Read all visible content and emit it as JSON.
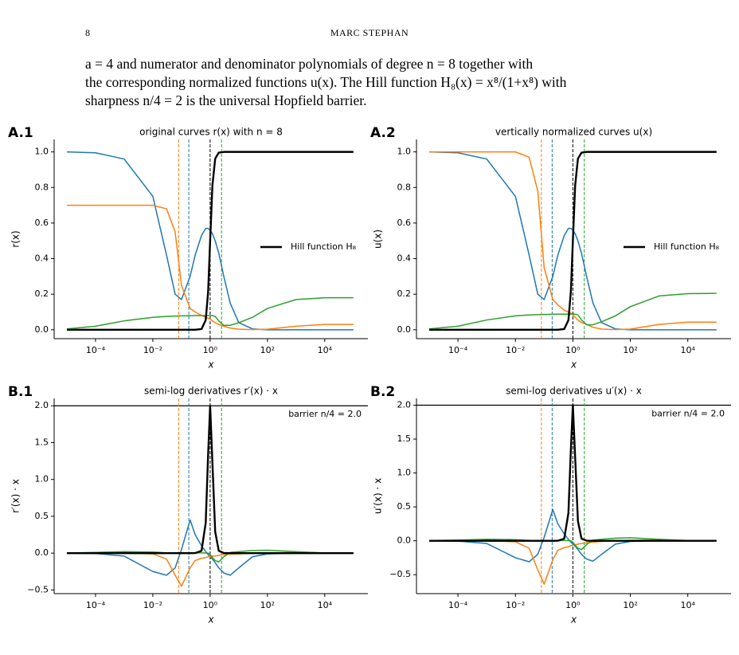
{
  "header": {
    "page_number": "8",
    "running_title": "MARC STEPHAN"
  },
  "paragraph": {
    "lines": [
      "a = 4 and numerator and denominator polynomials of degree n = 8 together with",
      "the corresponding normalized functions u(x). The Hill function H₈(x) = x⁸/(1+x⁸) with",
      "sharpness n/4 = 2 is the universal Hopfield barrier."
    ]
  },
  "chart_data": [
    {
      "type": "line",
      "panel": "A.1",
      "title": "original curves r(x) with n = 8",
      "xlabel": "x",
      "ylabel": "r(x)",
      "xscale": "log",
      "xlim": [
        3.6e-06,
        320000
      ],
      "ylim": [
        -0.05,
        1.07
      ],
      "xticks": [
        {
          "value": 0.0001,
          "label": "10⁻⁴"
        },
        {
          "value": 0.01,
          "label": "10⁻²"
        },
        {
          "value": 1,
          "label": "10⁰"
        },
        {
          "value": 100,
          "label": "10²"
        },
        {
          "value": 10000,
          "label": "10⁴"
        }
      ],
      "yticks": [
        {
          "value": 0,
          "label": "0.0"
        },
        0.2,
        0.4,
        0.6,
        0.8,
        {
          "value": 1,
          "label": "1.0"
        }
      ],
      "legend_loc": "center right",
      "x": [
        1e-05,
        0.0001,
        0.001,
        0.01,
        0.03,
        0.06,
        0.1,
        0.2,
        0.3,
        0.5,
        0.7,
        0.85,
        1,
        1.2,
        1.5,
        2,
        3,
        5,
        10,
        30,
        100,
        1000,
        10000,
        100000
      ],
      "series": [
        {
          "color": "#1f77b4",
          "values": [
            1.0,
            0.995,
            0.96,
            0.75,
            0.42,
            0.2,
            0.17,
            0.3,
            0.42,
            0.53,
            0.57,
            0.57,
            0.56,
            0.54,
            0.5,
            0.43,
            0.3,
            0.15,
            0.04,
            0.005,
            0,
            0,
            0,
            0
          ]
        },
        {
          "color": "#ff7f0e",
          "values": [
            0.7,
            0.7,
            0.7,
            0.7,
            0.68,
            0.55,
            0.25,
            0.12,
            0.1,
            0.08,
            0.07,
            0.065,
            0.06,
            0.05,
            0.04,
            0.03,
            0.02,
            0.01,
            0.003,
            0.001,
            0.003,
            0.02,
            0.03,
            0.03
          ]
        },
        {
          "color": "#2ca02c",
          "values": [
            0.005,
            0.02,
            0.05,
            0.07,
            0.075,
            0.077,
            0.078,
            0.079,
            0.08,
            0.08,
            0.08,
            0.08,
            0.08,
            0.08,
            0.075,
            0.05,
            0.025,
            0.025,
            0.04,
            0.07,
            0.12,
            0.17,
            0.18,
            0.18
          ]
        },
        {
          "name": "Hill function H₈",
          "color": "#000000",
          "values": [
            0,
            0,
            0,
            0,
            0,
            0,
            0,
            0,
            0.0001,
            0.0039,
            0.054,
            0.213,
            0.5,
            0.811,
            0.962,
            0.996,
            1,
            1,
            1,
            1,
            1,
            1,
            1,
            1
          ]
        }
      ],
      "vlines": [
        {
          "x": 0.08,
          "color": "#ff7f0e"
        },
        {
          "x": 0.18,
          "color": "#1f77b4"
        },
        {
          "x": 1,
          "color": "#000000"
        },
        {
          "x": 2.5,
          "color": "#2ca02c"
        }
      ]
    },
    {
      "type": "line",
      "panel": "A.2",
      "title": "vertically normalized curves u(x)",
      "xlabel": "x",
      "ylabel": "u(x)",
      "xscale": "log",
      "xlim": [
        3.6e-06,
        320000
      ],
      "ylim": [
        -0.05,
        1.07
      ],
      "xticks": [
        {
          "value": 0.0001,
          "label": "10⁻⁴"
        },
        {
          "value": 0.01,
          "label": "10⁻²"
        },
        {
          "value": 1,
          "label": "10⁰"
        },
        {
          "value": 100,
          "label": "10²"
        },
        {
          "value": 10000,
          "label": "10⁴"
        }
      ],
      "yticks": [
        {
          "value": 0,
          "label": "0.0"
        },
        0.2,
        0.4,
        0.6,
        0.8,
        {
          "value": 1,
          "label": "1.0"
        }
      ],
      "legend_loc": "center right",
      "x": [
        1e-05,
        0.0001,
        0.001,
        0.01,
        0.03,
        0.06,
        0.1,
        0.2,
        0.3,
        0.5,
        0.7,
        0.85,
        1,
        1.2,
        1.5,
        2,
        3,
        5,
        10,
        30,
        100,
        1000,
        10000,
        100000
      ],
      "series": [
        {
          "color": "#1f77b4",
          "values": [
            1.0,
            0.995,
            0.96,
            0.75,
            0.42,
            0.2,
            0.17,
            0.3,
            0.42,
            0.53,
            0.57,
            0.57,
            0.56,
            0.54,
            0.5,
            0.43,
            0.3,
            0.15,
            0.04,
            0.005,
            0,
            0,
            0,
            0
          ]
        },
        {
          "color": "#ff7f0e",
          "values": [
            1,
            1,
            1,
            1,
            0.97,
            0.78,
            0.35,
            0.17,
            0.14,
            0.11,
            0.1,
            0.093,
            0.085,
            0.07,
            0.055,
            0.04,
            0.03,
            0.014,
            0.004,
            0.001,
            0.004,
            0.03,
            0.043,
            0.043
          ]
        },
        {
          "color": "#2ca02c",
          "values": [
            0.005,
            0.02,
            0.055,
            0.078,
            0.083,
            0.085,
            0.086,
            0.087,
            0.088,
            0.088,
            0.088,
            0.088,
            0.088,
            0.088,
            0.083,
            0.055,
            0.028,
            0.028,
            0.045,
            0.078,
            0.13,
            0.19,
            0.203,
            0.205
          ]
        },
        {
          "name": "Hill function H₈",
          "color": "#000000",
          "values": [
            0,
            0,
            0,
            0,
            0,
            0,
            0,
            0,
            0.0001,
            0.0039,
            0.054,
            0.213,
            0.5,
            0.811,
            0.962,
            0.996,
            1,
            1,
            1,
            1,
            1,
            1,
            1,
            1
          ]
        }
      ],
      "vlines": [
        {
          "x": 0.08,
          "color": "#ff7f0e"
        },
        {
          "x": 0.19,
          "color": "#1f77b4"
        },
        {
          "x": 1,
          "color": "#000000"
        },
        {
          "x": 2.5,
          "color": "#2ca02c"
        }
      ]
    },
    {
      "type": "line",
      "panel": "B.1",
      "title": "semi-log derivatives r′(x) · x",
      "xlabel": "x",
      "ylabel": "r′(x) · x",
      "xscale": "log",
      "xlim": [
        3.6e-06,
        320000
      ],
      "ylim": [
        -0.55,
        2.1
      ],
      "xticks": [
        {
          "value": 0.0001,
          "label": "10⁻⁴"
        },
        {
          "value": 0.01,
          "label": "10⁻²"
        },
        {
          "value": 1,
          "label": "10⁰"
        },
        {
          "value": 100,
          "label": "10²"
        },
        {
          "value": 10000,
          "label": "10⁴"
        }
      ],
      "yticks": [
        {
          "value": -0.5,
          "label": "−0.5"
        },
        {
          "value": 0,
          "label": "0.0"
        },
        0.5,
        {
          "value": 1,
          "label": "1.0"
        },
        1.5,
        {
          "value": 2,
          "label": "2.0"
        }
      ],
      "hline": {
        "y": 2,
        "label": "barrier n/4 = 2.0"
      },
      "x": [
        1e-05,
        0.0001,
        0.001,
        0.01,
        0.03,
        0.06,
        0.1,
        0.2,
        0.3,
        0.5,
        0.7,
        0.85,
        1,
        1.2,
        1.5,
        2,
        3,
        5,
        10,
        30,
        100,
        1000,
        10000,
        100000
      ],
      "series": [
        {
          "color": "#1f77b4",
          "values": [
            0,
            -0.005,
            -0.04,
            -0.25,
            -0.3,
            -0.2,
            0.05,
            0.45,
            0.25,
            0.1,
            0.02,
            -0.02,
            -0.05,
            -0.08,
            -0.13,
            -0.2,
            -0.27,
            -0.3,
            -0.2,
            -0.05,
            -0.01,
            0,
            0,
            0
          ]
        },
        {
          "color": "#ff7f0e",
          "values": [
            0,
            0,
            0,
            -0.01,
            -0.08,
            -0.3,
            -0.45,
            -0.2,
            -0.1,
            -0.07,
            -0.06,
            -0.05,
            -0.05,
            -0.04,
            -0.04,
            -0.03,
            -0.02,
            -0.015,
            -0.01,
            0,
            0.005,
            0.01,
            0.003,
            0
          ]
        },
        {
          "color": "#2ca02c",
          "values": [
            0.003,
            0.01,
            0.02,
            0.015,
            0.005,
            0.003,
            0.003,
            0.003,
            0.003,
            0.003,
            0.002,
            0,
            -0.02,
            -0.06,
            -0.1,
            -0.12,
            -0.05,
            0.01,
            0.02,
            0.035,
            0.04,
            0.02,
            0.003,
            0
          ]
        },
        {
          "color": "#000000",
          "values": [
            0,
            0,
            0,
            0,
            0,
            0,
            0,
            0,
            0.0005,
            0.031,
            0.41,
            1.34,
            2.0,
            1.23,
            0.29,
            0.031,
            0.0015,
            0,
            0,
            0,
            0,
            0,
            0,
            0
          ]
        }
      ],
      "vlines": [
        {
          "x": 0.08,
          "color": "#ff7f0e"
        },
        {
          "x": 0.18,
          "color": "#1f77b4"
        },
        {
          "x": 1,
          "color": "#000000"
        },
        {
          "x": 2.5,
          "color": "#2ca02c"
        }
      ]
    },
    {
      "type": "line",
      "panel": "B.2",
      "title": "semi-log derivatives u′(x) · x",
      "xlabel": "x",
      "ylabel": "u′(x) · x",
      "xscale": "log",
      "xlim": [
        3.6e-06,
        320000
      ],
      "ylim": [
        -0.78,
        2.1
      ],
      "xticks": [
        {
          "value": 0.0001,
          "label": "10⁻⁴"
        },
        {
          "value": 0.01,
          "label": "10⁻²"
        },
        {
          "value": 1,
          "label": "10⁰"
        },
        {
          "value": 100,
          "label": "10²"
        },
        {
          "value": 10000,
          "label": "10⁴"
        }
      ],
      "yticks": [
        {
          "value": -0.5,
          "label": "−0.5"
        },
        {
          "value": 0,
          "label": "0.0"
        },
        0.5,
        {
          "value": 1,
          "label": "1.0"
        },
        1.5,
        {
          "value": 2,
          "label": "2.0"
        }
      ],
      "hline": {
        "y": 2,
        "label": "barrier n/4 = 2.0"
      },
      "x": [
        1e-05,
        0.0001,
        0.001,
        0.01,
        0.03,
        0.06,
        0.1,
        0.2,
        0.3,
        0.5,
        0.7,
        0.85,
        1,
        1.2,
        1.5,
        2,
        3,
        5,
        10,
        30,
        100,
        1000,
        10000,
        100000
      ],
      "series": [
        {
          "color": "#1f77b4",
          "values": [
            0,
            -0.005,
            -0.04,
            -0.25,
            -0.31,
            -0.2,
            0.05,
            0.46,
            0.25,
            0.1,
            0.02,
            -0.02,
            -0.05,
            -0.08,
            -0.13,
            -0.2,
            -0.27,
            -0.3,
            -0.2,
            -0.05,
            -0.01,
            0,
            0,
            0
          ]
        },
        {
          "color": "#ff7f0e",
          "values": [
            0,
            0,
            0,
            -0.015,
            -0.11,
            -0.43,
            -0.64,
            -0.28,
            -0.14,
            -0.1,
            -0.09,
            -0.07,
            -0.07,
            -0.06,
            -0.05,
            -0.04,
            -0.03,
            -0.02,
            -0.01,
            0,
            0.007,
            0.014,
            0.004,
            0
          ]
        },
        {
          "color": "#2ca02c",
          "values": [
            0.003,
            0.011,
            0.022,
            0.017,
            0.006,
            0.003,
            0.003,
            0.003,
            0.003,
            0.003,
            0.002,
            0,
            -0.022,
            -0.066,
            -0.11,
            -0.13,
            -0.055,
            0.011,
            0.022,
            0.039,
            0.044,
            0.022,
            0.003,
            0
          ]
        },
        {
          "color": "#000000",
          "values": [
            0,
            0,
            0,
            0,
            0,
            0,
            0,
            0,
            0.0005,
            0.031,
            0.41,
            1.34,
            2.0,
            1.23,
            0.29,
            0.031,
            0.0015,
            0,
            0,
            0,
            0,
            0,
            0,
            0
          ]
        }
      ],
      "vlines": [
        {
          "x": 0.08,
          "color": "#ff7f0e"
        },
        {
          "x": 0.19,
          "color": "#1f77b4"
        },
        {
          "x": 1,
          "color": "#000000"
        },
        {
          "x": 2.5,
          "color": "#2ca02c"
        }
      ]
    }
  ]
}
